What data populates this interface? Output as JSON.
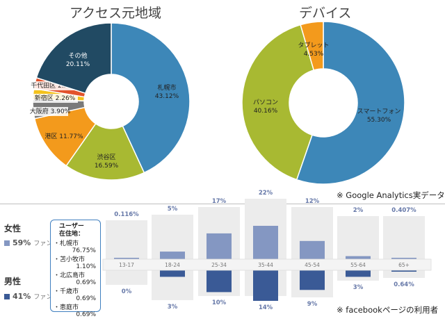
{
  "chart_data": [
    {
      "type": "pie",
      "title": "アクセス元地域",
      "slices": [
        {
          "label": "札幌市",
          "value": 43.12,
          "display": "43.12%",
          "color": "#3d87b8"
        },
        {
          "label": "渋谷区",
          "value": 16.59,
          "display": "16.59%",
          "color": "#a8b932"
        },
        {
          "label": "港区",
          "value": 11.77,
          "display": "11.77%",
          "color": "#f39a1c"
        },
        {
          "label": "大阪府",
          "value": 3.9,
          "display": "3.90%",
          "color": "#7a7a7a"
        },
        {
          "label": "新宿区",
          "value": 2.26,
          "display": "2.26%",
          "color": "#f3c21c"
        },
        {
          "label": "千代田区",
          "value": 2.25,
          "display": "2.25%",
          "color": "#e2532c"
        },
        {
          "label": "その他",
          "value": 20.11,
          "display": "20.11%",
          "color": "#214a63"
        }
      ]
    },
    {
      "type": "pie",
      "title": "デバイス",
      "slices": [
        {
          "label": "スマートフォン",
          "value": 55.3,
          "display": "55.30%",
          "color": "#3d87b8"
        },
        {
          "label": "パソコン",
          "value": 40.16,
          "display": "40.16%",
          "color": "#a8b932"
        },
        {
          "label": "タブレット",
          "value": 4.53,
          "display": "4.53%",
          "color": "#f39a1c"
        }
      ]
    },
    {
      "type": "bar",
      "categories": [
        "13-17",
        "18-24",
        "25-34",
        "35-44",
        "45-54",
        "55-64",
        "65+"
      ],
      "series": [
        {
          "name": "女性",
          "values": [
            0.116,
            5,
            17,
            22,
            12,
            2,
            0.407
          ],
          "labels": [
            "0.116%",
            "5%",
            "17%",
            "22%",
            "12%",
            "2%",
            "0.407%"
          ],
          "color": "#8497c2"
        },
        {
          "name": "男性",
          "values": [
            0,
            3,
            10,
            14,
            9,
            3,
            0.64
          ],
          "labels": [
            "0%",
            "3%",
            "10%",
            "14%",
            "9%",
            "3%",
            "0.64%"
          ],
          "color": "#3a5a96"
        }
      ],
      "ylim": [
        0,
        25
      ]
    }
  ],
  "notes": {
    "ga": "※ Google Analytics実データ",
    "fb": "※ facebookページの利用者"
  },
  "gender": {
    "female_label": "女性",
    "female_pct": "59%",
    "male_label": "男性",
    "male_pct": "41%",
    "fan": "ファン"
  },
  "residence": {
    "title_line1": "ユーザー",
    "title_line2": "在住地：",
    "items": [
      {
        "city": "・札幌市",
        "pct": "76.75%"
      },
      {
        "city": "・苫小牧市",
        "pct": "1.10%"
      },
      {
        "city": "・北広島市",
        "pct": "0.69%"
      },
      {
        "city": "・千歳市",
        "pct": "0.69%"
      },
      {
        "city": "・恵庭市",
        "pct": "0.69%"
      }
    ]
  }
}
